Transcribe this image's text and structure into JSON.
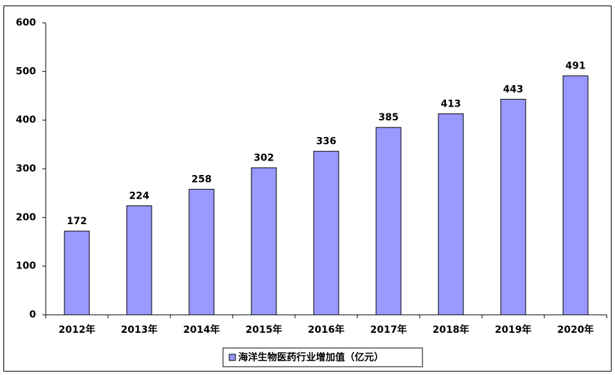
{
  "chart_data": {
    "type": "bar",
    "categories": [
      "2012年",
      "2013年",
      "2014年",
      "2015年",
      "2016年",
      "2017年",
      "2018年",
      "2019年",
      "2020年"
    ],
    "series": [
      {
        "name": "海洋生物医药行业增加值（亿元）",
        "color": "#9999ff",
        "values": [
          172,
          224,
          258,
          302,
          336,
          385,
          413,
          443,
          491
        ]
      }
    ],
    "ylim": [
      0,
      600
    ],
    "yticks": [
      0,
      100,
      200,
      300,
      400,
      500,
      600
    ],
    "grid": false,
    "legend": "bottom"
  }
}
